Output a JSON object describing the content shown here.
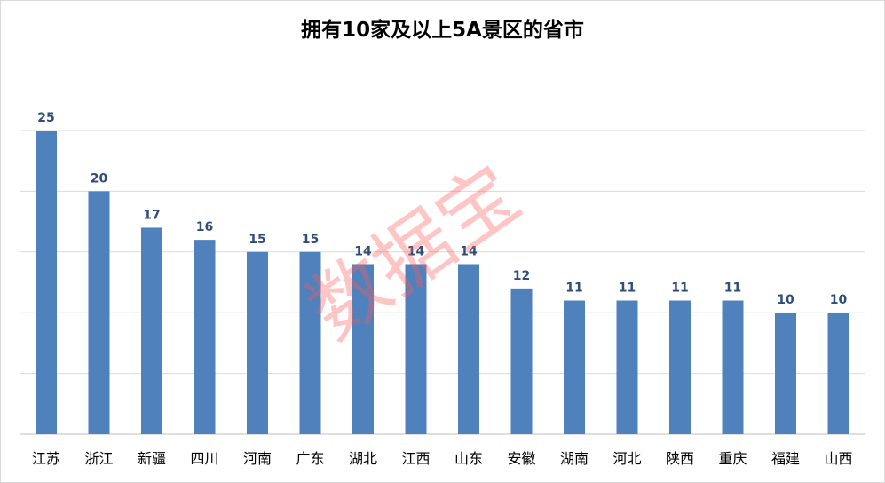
{
  "chart_data": {
    "type": "bar",
    "title": "拥有10家及以上5A景区的省市",
    "categories": [
      "江苏",
      "浙江",
      "新疆",
      "四川",
      "河南",
      "广东",
      "湖北",
      "江西",
      "山东",
      "安徽",
      "湖南",
      "河北",
      "陕西",
      "重庆",
      "福建",
      "山西"
    ],
    "values": [
      25,
      20,
      17,
      16,
      15,
      15,
      14,
      14,
      14,
      12,
      11,
      11,
      11,
      11,
      10,
      10
    ],
    "xlabel": "",
    "ylabel": "",
    "ylim": [
      0,
      25
    ],
    "grid": true,
    "gridlines": [
      0,
      5,
      10,
      15,
      20,
      25
    ],
    "bar_color": "#4f81bd",
    "label_color": "#2f4d7a",
    "watermark": "数据宝"
  }
}
